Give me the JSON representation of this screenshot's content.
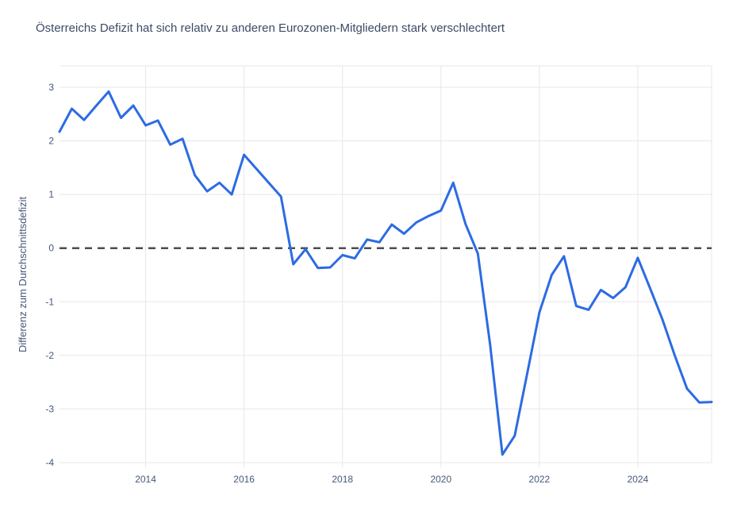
{
  "page": {
    "background": "#ffffff"
  },
  "chart_data": {
    "type": "line",
    "title": "Österreichs Defizit hat sich relativ zu anderen Eurozonen-Mitgliedern stark verschlechtert",
    "xlabel": "",
    "ylabel": "Differenz zum Durchschnittsdefizit",
    "legend": "none",
    "grid": true,
    "xlim": [
      2012.25,
      2025.5
    ],
    "ylim": [
      -4,
      3.37
    ],
    "x_tick_values": [
      2014,
      2016,
      2018,
      2020,
      2022,
      2024
    ],
    "x_tick_labels": [
      "2014",
      "2016",
      "2018",
      "2020",
      "2022",
      "2024"
    ],
    "y_tick_values": [
      3,
      2,
      1,
      0,
      -1,
      -2,
      -3,
      -4
    ],
    "zero_line_style": "dashed",
    "colors": {
      "line": "#2c6be3",
      "grid": "#e7e7e7",
      "zero_line": "#4d4d4d",
      "title_text": "#3d4b66",
      "tick_text": "#46587a",
      "background": "#ffffff"
    },
    "series": [
      {
        "name": "Differenz zum Durchschnittsdefizit",
        "x_start": 2012.25,
        "x_step": 0.25,
        "x": [
          2012.25,
          2012.5,
          2012.75,
          2013.0,
          2013.25,
          2013.5,
          2013.75,
          2014.0,
          2014.25,
          2014.5,
          2014.75,
          2015.0,
          2015.25,
          2015.5,
          2015.75,
          2016.0,
          2016.25,
          2016.5,
          2016.75,
          2017.0,
          2017.25,
          2017.5,
          2017.75,
          2018.0,
          2018.25,
          2018.5,
          2018.75,
          2019.0,
          2019.25,
          2019.5,
          2019.75,
          2020.0,
          2020.25,
          2020.5,
          2020.75,
          2021.0,
          2021.25,
          2021.5,
          2021.75,
          2022.0,
          2022.25,
          2022.5,
          2022.75,
          2023.0,
          2023.25,
          2023.5,
          2023.75,
          2024.0,
          2024.25,
          2024.5,
          2024.75,
          2025.0,
          2025.25,
          2025.5
        ],
        "y": [
          2.17,
          2.6,
          2.39,
          2.66,
          2.92,
          2.43,
          2.66,
          2.29,
          2.38,
          1.93,
          2.04,
          1.36,
          1.06,
          1.22,
          1.0,
          1.74,
          1.48,
          1.22,
          0.96,
          -0.3,
          -0.02,
          -0.37,
          -0.36,
          -0.13,
          -0.19,
          0.16,
          0.11,
          0.44,
          0.27,
          0.48,
          0.6,
          0.7,
          1.22,
          0.45,
          -0.1,
          -1.8,
          -3.85,
          -3.5,
          -2.35,
          -1.2,
          -0.5,
          -0.15,
          -1.08,
          -1.15,
          -0.78,
          -0.93,
          -0.73,
          -0.18,
          -0.75,
          -1.33,
          -2.0,
          -2.62,
          -2.88,
          -2.87
        ]
      }
    ]
  }
}
